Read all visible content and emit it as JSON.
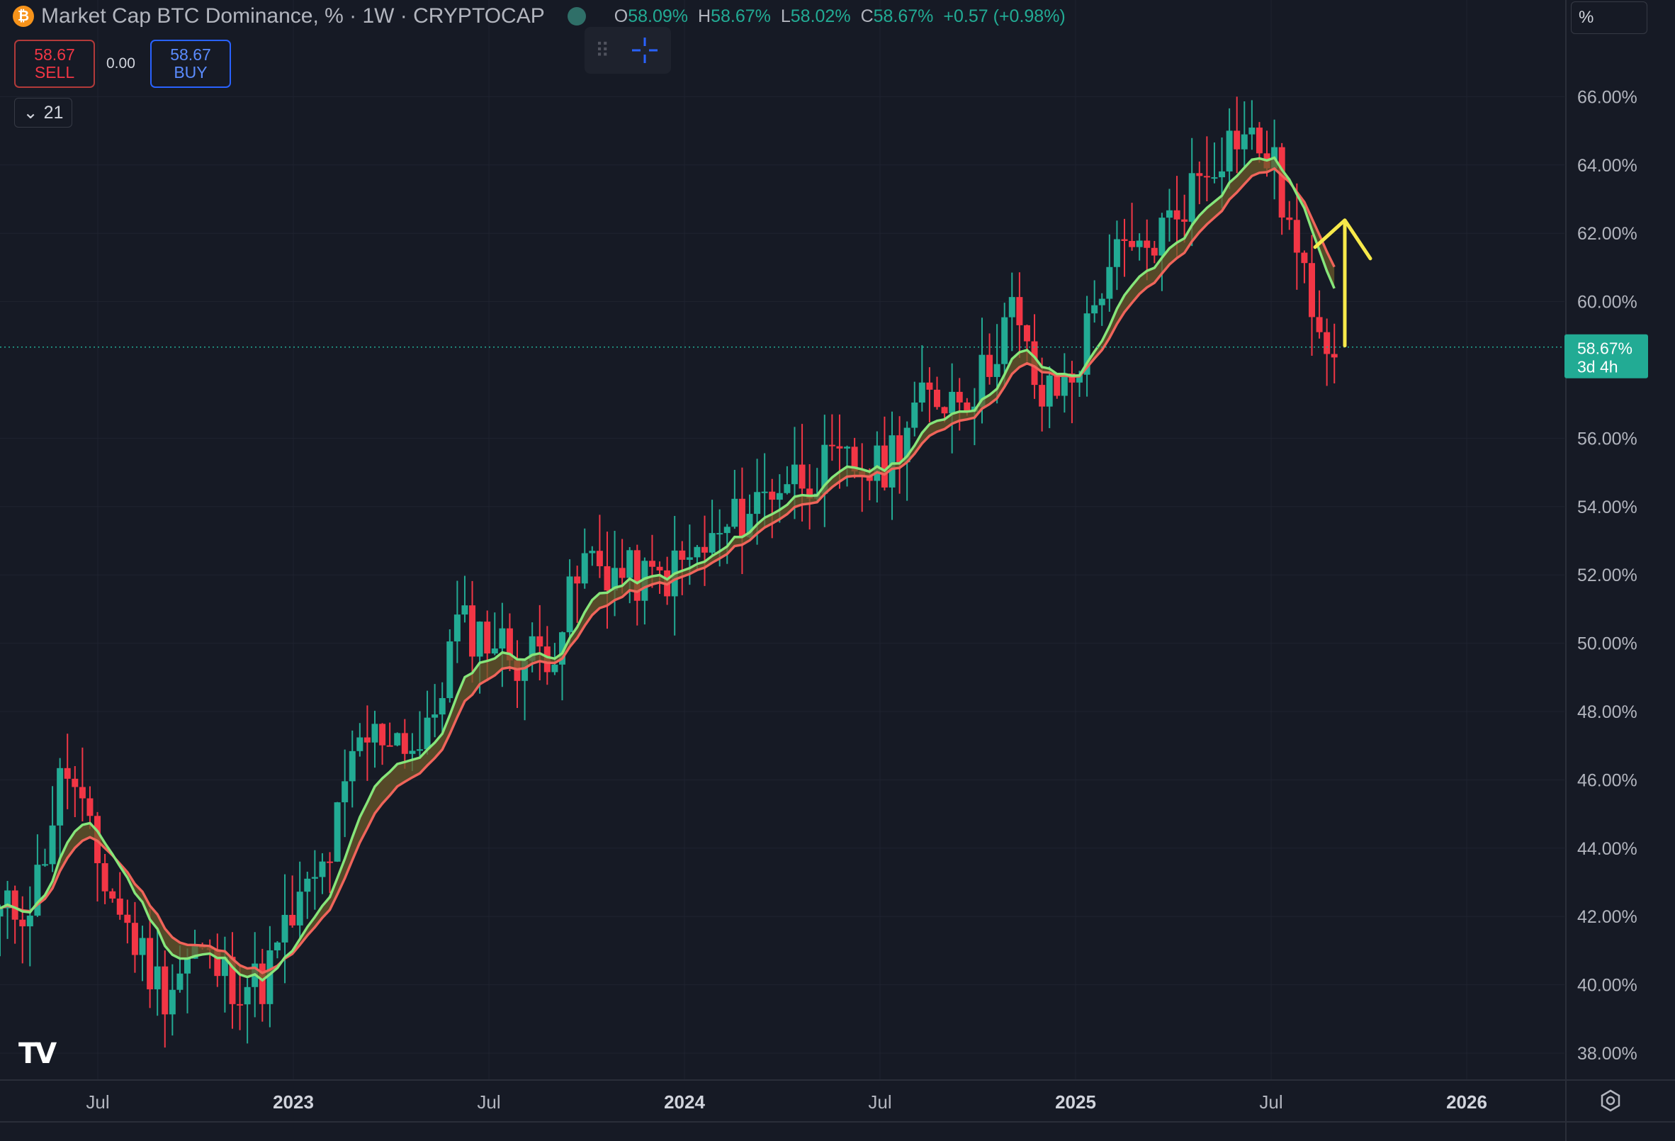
{
  "header": {
    "title": "Market Cap BTC Dominance, % · 1W · CRYPTOCAP",
    "ohlc": [
      {
        "key": "O",
        "value": "58.09%"
      },
      {
        "key": "H",
        "value": "58.67%"
      },
      {
        "key": "L",
        "value": "58.02%"
      },
      {
        "key": "C",
        "value": "58.67%"
      },
      {
        "key": "",
        "value": "+0.57 (+0.98%)"
      }
    ]
  },
  "trade": {
    "sell_price": "58.67",
    "sell_label": "SELL",
    "spread": "0.00",
    "buy_price": "58.67",
    "buy_label": "BUY"
  },
  "indicators": {
    "count": "21"
  },
  "scale": {
    "unit": "%"
  },
  "price_label": {
    "value": "58.67%",
    "countdown": "3d 4h"
  },
  "icons": {
    "coin": "bitcoin-icon",
    "logo": "tradingview-logo-icon",
    "settings": "gear-icon"
  },
  "colors": {
    "background": "#161a25",
    "up": "#22ab94",
    "down": "#f23645",
    "fast_ma": "#86e67a",
    "slow_ma": "#f0645a",
    "ribbon": "#6b5a2a",
    "annotation_arrow": "#f7e94a"
  },
  "chart_data": {
    "type": "candlestick",
    "title": "Market Cap BTC Dominance, % · 1W · CRYPTOCAP",
    "interval": "1W",
    "ylim": [
      37,
      68
    ],
    "yticks": [
      "66.00%",
      "64.00%",
      "62.00%",
      "60.00%",
      "56.00%",
      "54.00%",
      "52.00%",
      "50.00%",
      "48.00%",
      "46.00%",
      "44.00%",
      "42.00%",
      "40.00%",
      "38.00%"
    ],
    "yticks_values": [
      66,
      64,
      62,
      60,
      56,
      54,
      52,
      50,
      48,
      46,
      44,
      42,
      40,
      38
    ],
    "xticks": [
      "Jul",
      "2023",
      "Jul",
      "2024",
      "Jul",
      "2025",
      "Jul",
      "2026"
    ],
    "xticks_values": [
      "2022-07",
      "2023-01",
      "2023-07",
      "2024-01",
      "2024-07",
      "2025-01",
      "2025-07",
      "2026-01"
    ],
    "xlim": [
      "2022-04",
      "2026-04"
    ],
    "current_value": 58.67,
    "close_anchors": [
      [
        "2022-04",
        42.0
      ],
      [
        "2022-05",
        42.5
      ],
      [
        "2022-06",
        46.5
      ],
      [
        "2022-07",
        43.5
      ],
      [
        "2022-08",
        41.5
      ],
      [
        "2022-09",
        39.8
      ],
      [
        "2022-10",
        41.0
      ],
      [
        "2022-11",
        40.2
      ],
      [
        "2022-12",
        40.0
      ],
      [
        "2023-01",
        42.0
      ],
      [
        "2023-02",
        43.5
      ],
      [
        "2023-03",
        47.0
      ],
      [
        "2023-04",
        47.5
      ],
      [
        "2023-05",
        46.8
      ],
      [
        "2023-06",
        50.5
      ],
      [
        "2023-07",
        50.2
      ],
      [
        "2023-08",
        49.5
      ],
      [
        "2023-09",
        50.0
      ],
      [
        "2023-10",
        52.5
      ],
      [
        "2023-11",
        52.0
      ],
      [
        "2023-12",
        51.8
      ],
      [
        "2024-01",
        52.3
      ],
      [
        "2024-02",
        53.0
      ],
      [
        "2024-03",
        54.0
      ],
      [
        "2024-04",
        54.8
      ],
      [
        "2024-05",
        55.0
      ],
      [
        "2024-06",
        55.2
      ],
      [
        "2024-07",
        55.0
      ],
      [
        "2024-08",
        56.8
      ],
      [
        "2024-09",
        57.3
      ],
      [
        "2024-10",
        57.5
      ],
      [
        "2024-11",
        59.8
      ],
      [
        "2024-12",
        57.0
      ],
      [
        "2025-01",
        58.0
      ],
      [
        "2025-02",
        61.2
      ],
      [
        "2025-03",
        61.3
      ],
      [
        "2025-04",
        62.5
      ],
      [
        "2025-05",
        64.0
      ],
      [
        "2025-06",
        65.0
      ],
      [
        "2025-07",
        64.2
      ],
      [
        "2025-08",
        60.5
      ],
      [
        "2025-09",
        58.67
      ]
    ],
    "series": [
      {
        "name": "",
        "type": "candlestick",
        "frequency": "weekly"
      },
      {
        "name": "",
        "type": "line",
        "role": "fast moving average"
      },
      {
        "name": "",
        "type": "line",
        "role": "slow moving average"
      }
    ],
    "annotations": [
      {
        "type": "arrow",
        "direction": "up",
        "start": [
          "2025-09",
          58.67
        ],
        "end": [
          "2025-10",
          62.3
        ]
      }
    ],
    "grid": true
  }
}
